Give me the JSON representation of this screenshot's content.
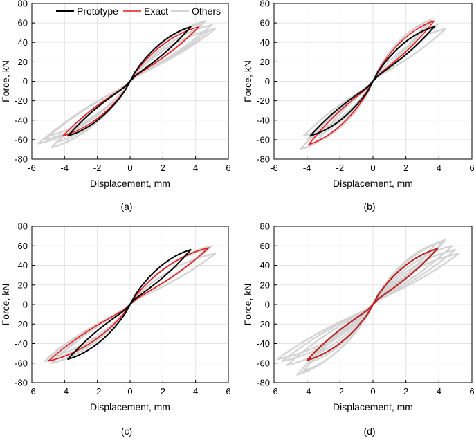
{
  "colors": {
    "prototype": "#000000",
    "exact": "#e8191c",
    "others": "#d4d4d4",
    "grid": "#e3e3e3"
  },
  "chart_data": [
    {
      "type": "line",
      "panel_label": "(a)",
      "xlabel": "Displacement, mm",
      "ylabel": "Force, kN",
      "xlim": [
        -6,
        6
      ],
      "ylim": [
        -80,
        80
      ],
      "xticks": [
        "-6",
        "-4",
        "-2",
        "0",
        "2",
        "4",
        "6"
      ],
      "yticks": [
        "80",
        "60",
        "40",
        "20",
        "0",
        "-20",
        "-40",
        "-60",
        "-80"
      ],
      "grid": true,
      "legend": {
        "placement": "top",
        "entries": [
          "Prototype",
          "Exact",
          "Others"
        ]
      },
      "series": [
        {
          "name": "Others",
          "loops": [
            {
              "xmax": 5.0,
              "fmax": 58,
              "xmin": -5.2,
              "fmin": -60
            },
            {
              "xmax": 4.6,
              "fmax": 62,
              "xmin": -5.6,
              "fmin": -64
            },
            {
              "xmax": 5.2,
              "fmax": 54,
              "xmin": -4.8,
              "fmin": -68
            },
            {
              "xmax": 4.4,
              "fmax": 60,
              "xmin": -5.0,
              "fmin": -56
            },
            {
              "xmax": 4.8,
              "fmax": 52,
              "xmin": -4.4,
              "fmin": -62
            }
          ]
        },
        {
          "name": "Exact",
          "xmax": 4.2,
          "fmax": 56,
          "xmin": -4.1,
          "fmin": -56
        },
        {
          "name": "Prototype",
          "xmax": 3.7,
          "fmax": 56,
          "xmin": -3.8,
          "fmin": -56
        }
      ]
    },
    {
      "type": "line",
      "panel_label": "(b)",
      "xlabel": "Displacement, mm",
      "ylabel": "Force, kN",
      "xlim": [
        -6,
        6
      ],
      "ylim": [
        -80,
        80
      ],
      "xticks": [
        "-6",
        "-4",
        "-2",
        "0",
        "2",
        "4",
        "6"
      ],
      "yticks": [
        "80",
        "60",
        "40",
        "20",
        "0",
        "-20",
        "-40",
        "-60",
        "-80"
      ],
      "grid": true,
      "series": [
        {
          "name": "Others",
          "loops": [
            {
              "xmax": 3.6,
              "fmax": 64,
              "xmin": -3.9,
              "fmin": -66
            },
            {
              "xmax": 4.4,
              "fmax": 54,
              "xmin": -4.2,
              "fmin": -56
            },
            {
              "xmax": 3.2,
              "fmax": 60,
              "xmin": -4.4,
              "fmin": -70
            },
            {
              "xmax": 3.9,
              "fmax": 58,
              "xmin": -3.4,
              "fmin": -62
            },
            {
              "xmax": 3.4,
              "fmax": 62,
              "xmin": -4.0,
              "fmin": -60
            }
          ]
        },
        {
          "name": "Exact",
          "xmax": 3.7,
          "fmax": 62,
          "xmin": -3.9,
          "fmin": -65
        },
        {
          "name": "Prototype",
          "xmax": 3.7,
          "fmax": 56,
          "xmin": -3.8,
          "fmin": -56
        }
      ]
    },
    {
      "type": "line",
      "panel_label": "(c)",
      "xlabel": "Displacement, mm",
      "ylabel": "Force, kN",
      "xlim": [
        -6,
        6
      ],
      "ylim": [
        -80,
        80
      ],
      "xticks": [
        "-6",
        "-4",
        "-2",
        "0",
        "2",
        "4",
        "6"
      ],
      "yticks": [
        "80",
        "60",
        "40",
        "20",
        "0",
        "-20",
        "-40",
        "-60",
        "-80"
      ],
      "grid": true,
      "series": [
        {
          "name": "Others",
          "loops": [
            {
              "xmax": 5.0,
              "fmax": 60,
              "xmin": -5.2,
              "fmin": -58
            },
            {
              "xmax": 4.6,
              "fmax": 56,
              "xmin": -4.8,
              "fmin": -60
            },
            {
              "xmax": 5.2,
              "fmax": 52,
              "xmin": -5.0,
              "fmin": -54
            },
            {
              "xmax": 4.8,
              "fmax": 58,
              "xmin": -4.6,
              "fmin": -56
            }
          ]
        },
        {
          "name": "Exact",
          "xmax": 4.8,
          "fmax": 58,
          "xmin": -5.0,
          "fmin": -58
        },
        {
          "name": "Prototype",
          "xmax": 3.7,
          "fmax": 56,
          "xmin": -3.8,
          "fmin": -56
        }
      ]
    },
    {
      "type": "line",
      "panel_label": "(d)",
      "xlabel": "Displacement, mm",
      "ylabel": "Force, kN",
      "xlim": [
        -6,
        6
      ],
      "ylim": [
        -80,
        80
      ],
      "xticks": [
        "-6",
        "-4",
        "-2",
        "0",
        "2",
        "4",
        "6"
      ],
      "yticks": [
        "80",
        "60",
        "40",
        "20",
        "0",
        "-20",
        "-40",
        "-60",
        "-80"
      ],
      "grid": true,
      "series": [
        {
          "name": "Others",
          "loops": [
            {
              "xmax": 5.0,
              "fmax": 56,
              "xmin": -5.8,
              "fmin": -56
            },
            {
              "xmax": 4.4,
              "fmax": 66,
              "xmin": -4.6,
              "fmin": -72
            },
            {
              "xmax": 4.8,
              "fmax": 60,
              "xmin": -5.2,
              "fmin": -62
            },
            {
              "xmax": 3.8,
              "fmax": 62,
              "xmin": -4.2,
              "fmin": -68
            },
            {
              "xmax": 5.2,
              "fmax": 52,
              "xmin": -5.5,
              "fmin": -58
            },
            {
              "xmax": 4.2,
              "fmax": 64,
              "xmin": -4.0,
              "fmin": -60
            }
          ]
        },
        {
          "name": "Prototype",
          "xmax": 3.9,
          "fmax": 57,
          "xmin": -4.0,
          "fmin": -57
        },
        {
          "name": "Exact",
          "xmax": 3.9,
          "fmax": 57,
          "xmin": -4.0,
          "fmin": -57
        }
      ]
    }
  ]
}
